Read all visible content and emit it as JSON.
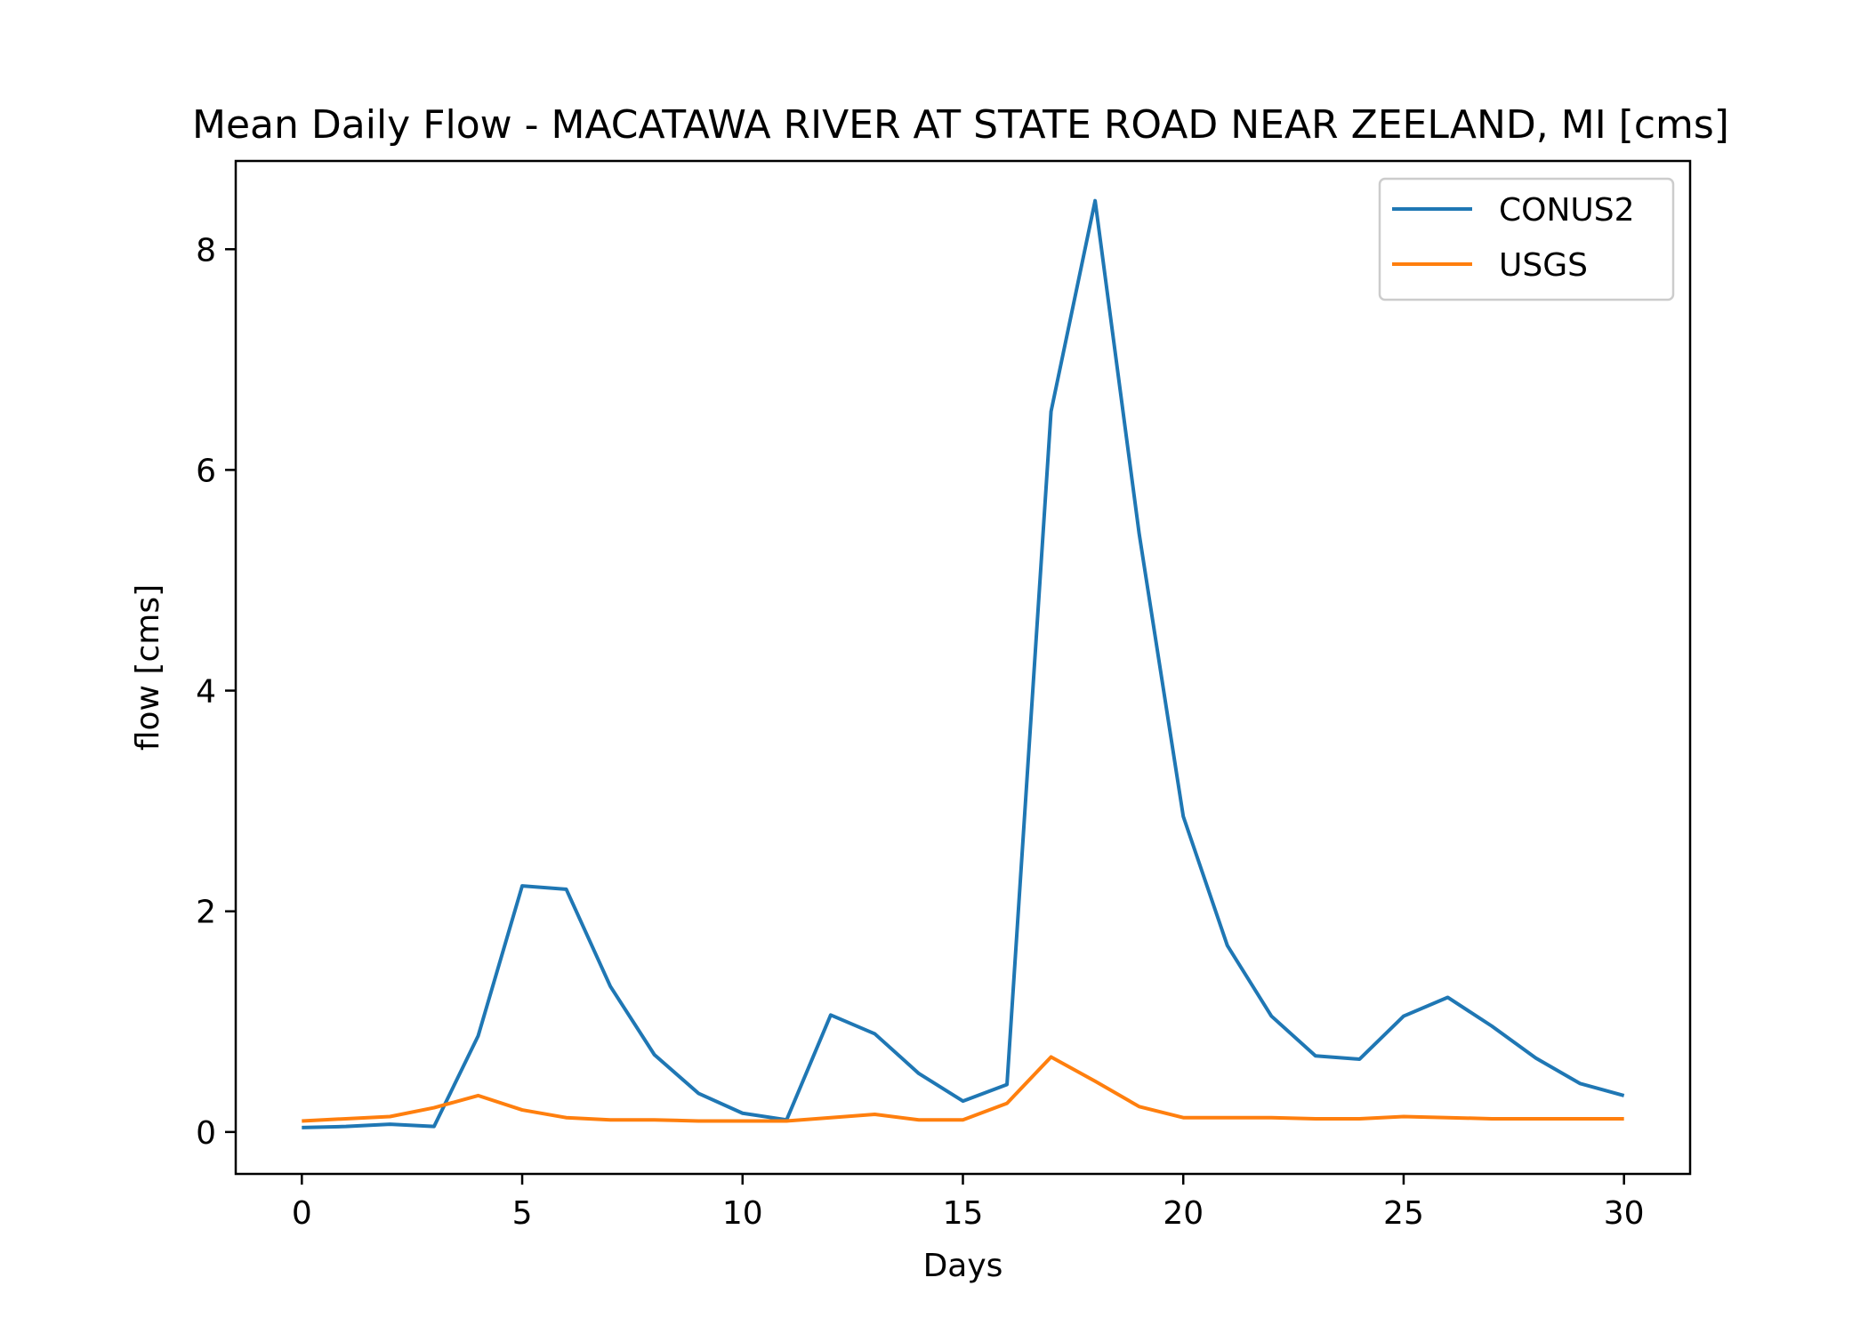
{
  "chart_data": {
    "type": "line",
    "title": "Mean Daily Flow - MACATAWA RIVER AT STATE ROAD NEAR ZEELAND, MI [cms]",
    "xlabel": "Days",
    "ylabel": "flow [cms]",
    "xlim": [
      -1.5,
      31.5
    ],
    "ylim": [
      -0.38,
      8.8
    ],
    "xticks": [
      0,
      5,
      10,
      15,
      20,
      25,
      30
    ],
    "yticks": [
      0,
      2,
      4,
      6,
      8
    ],
    "grid": false,
    "legend_position": "top-right",
    "x": [
      0,
      1,
      2,
      3,
      4,
      5,
      6,
      7,
      8,
      9,
      10,
      11,
      12,
      13,
      14,
      15,
      16,
      17,
      18,
      19,
      20,
      21,
      22,
      23,
      24,
      25,
      26,
      27,
      28,
      29,
      30
    ],
    "series": [
      {
        "name": "CONUS2",
        "color": "#1f77b4",
        "values": [
          0.04,
          0.05,
          0.07,
          0.05,
          0.87,
          2.23,
          2.2,
          1.32,
          0.7,
          0.35,
          0.17,
          0.11,
          1.06,
          0.89,
          0.53,
          0.28,
          0.43,
          6.53,
          8.44,
          5.42,
          2.86,
          1.69,
          1.05,
          0.69,
          0.66,
          1.05,
          1.22,
          0.96,
          0.67,
          0.44,
          0.33
        ]
      },
      {
        "name": "USGS",
        "color": "#ff7f0e",
        "values": [
          0.1,
          0.12,
          0.14,
          0.22,
          0.33,
          0.2,
          0.13,
          0.11,
          0.11,
          0.1,
          0.1,
          0.1,
          0.13,
          0.16,
          0.11,
          0.11,
          0.26,
          0.68,
          0.46,
          0.23,
          0.13,
          0.13,
          0.13,
          0.12,
          0.12,
          0.14,
          0.13,
          0.12,
          0.12,
          0.12,
          0.12
        ]
      }
    ]
  }
}
